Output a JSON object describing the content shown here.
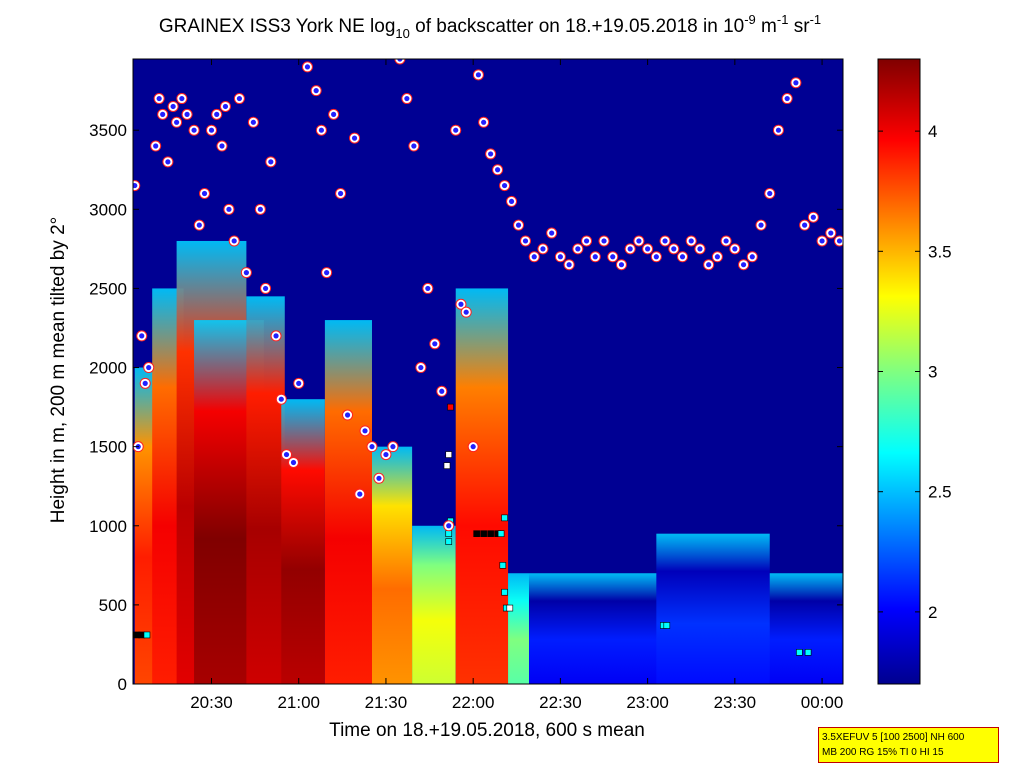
{
  "chart_data": {
    "type": "heatmap",
    "title": {
      "main": "GRAINEX ISS3 York NE log",
      "sub": "10",
      "after": " of backscatter on 18.+19.05.2018 in 10",
      "exp1": "-9",
      "mid": " m",
      "exp2": "-1",
      "tail": " sr",
      "exp3": "-1"
    },
    "xlabel": "Time on 18.+19.05.2018, 600 s mean",
    "ylabel": "Height in m, 200 m mean tilted by 2°",
    "x_unit": "hours since 18.05.2018 00:00",
    "xlim": [
      20.05,
      24.12
    ],
    "ylim": [
      0,
      3950
    ],
    "x_ticks": [
      {
        "value": 20.5,
        "label": "20:30"
      },
      {
        "value": 21.0,
        "label": "21:00"
      },
      {
        "value": 21.5,
        "label": "21:30"
      },
      {
        "value": 22.0,
        "label": "22:00"
      },
      {
        "value": 22.5,
        "label": "22:30"
      },
      {
        "value": 23.0,
        "label": "23:00"
      },
      {
        "value": 23.5,
        "label": "23:30"
      },
      {
        "value": 24.0,
        "label": "00:00"
      }
    ],
    "y_ticks": [
      {
        "value": 0,
        "label": "0"
      },
      {
        "value": 500,
        "label": "500"
      },
      {
        "value": 1000,
        "label": "1000"
      },
      {
        "value": 1500,
        "label": "1500"
      },
      {
        "value": 2000,
        "label": "2000"
      },
      {
        "value": 2500,
        "label": "2500"
      },
      {
        "value": 3000,
        "label": "3000"
      },
      {
        "value": 3500,
        "label": "3500"
      }
    ],
    "colorbar": {
      "range": [
        1.7,
        4.3
      ],
      "ticks": [
        {
          "value": 2,
          "label": "2"
        },
        {
          "value": 2.5,
          "label": "2.5"
        },
        {
          "value": 3,
          "label": "3"
        },
        {
          "value": 3.5,
          "label": "3.5"
        },
        {
          "value": 4,
          "label": "4"
        }
      ]
    },
    "background_level": 1.75,
    "plumes": [
      {
        "x0": 20.06,
        "x1": 20.18,
        "top": 2000,
        "level": 3.9
      },
      {
        "x0": 20.16,
        "x1": 20.34,
        "top": 2500,
        "level": 4.0
      },
      {
        "x0": 20.3,
        "x1": 20.7,
        "top": 2800,
        "level": 4.15
      },
      {
        "x0": 20.4,
        "x1": 20.8,
        "top": 2300,
        "level": 4.3
      },
      {
        "x0": 20.7,
        "x1": 20.92,
        "top": 2450,
        "level": 4.2
      },
      {
        "x0": 20.9,
        "x1": 21.15,
        "top": 1800,
        "level": 4.25
      },
      {
        "x0": 21.15,
        "x1": 21.42,
        "top": 2300,
        "level": 4.0
      },
      {
        "x0": 21.42,
        "x1": 21.65,
        "top": 1500,
        "level": 3.7
      },
      {
        "x0": 21.65,
        "x1": 21.9,
        "top": 1000,
        "level": 3.3
      },
      {
        "x0": 21.9,
        "x1": 22.2,
        "top": 2500,
        "level": 3.95
      },
      {
        "x0": 22.2,
        "x1": 22.32,
        "top": 700,
        "level": 3.0
      },
      {
        "x0": 22.32,
        "x1": 24.12,
        "top": 700,
        "level": 2.1
      },
      {
        "x0": 23.05,
        "x1": 23.7,
        "top": 950,
        "level": 2.15
      }
    ],
    "series": [
      {
        "name": "cloud-top points",
        "x": [
          20.06,
          20.08,
          20.1,
          20.12,
          20.14,
          20.18,
          20.2,
          20.22,
          20.25,
          20.28,
          20.3,
          20.33,
          20.36,
          20.4,
          20.43,
          20.46,
          20.5,
          20.53,
          20.56,
          20.58,
          20.6,
          20.63,
          20.66,
          20.7,
          20.74,
          20.78,
          20.81,
          20.84,
          20.87,
          20.9,
          20.93,
          20.97,
          21.0,
          21.05,
          21.1,
          21.13,
          21.16,
          21.2,
          21.24,
          21.28,
          21.32,
          21.35,
          21.38,
          21.42,
          21.46,
          21.5,
          21.54,
          21.58,
          21.62,
          21.66,
          21.7,
          21.74,
          21.78,
          21.82,
          21.86,
          21.9,
          21.93,
          21.96,
          22.0,
          22.03,
          22.06,
          22.1,
          22.14,
          22.18,
          22.22,
          22.26,
          22.3,
          22.35,
          22.4,
          22.45,
          22.5,
          22.55,
          22.6,
          22.65,
          22.7,
          22.75,
          22.8,
          22.85,
          22.9,
          22.95,
          23.0,
          23.05,
          23.1,
          23.15,
          23.2,
          23.25,
          23.3,
          23.35,
          23.4,
          23.45,
          23.5,
          23.55,
          23.6,
          23.65,
          23.7,
          23.75,
          23.8,
          23.85,
          23.9,
          23.95,
          24.0,
          24.05,
          24.1
        ],
        "y": [
          3150,
          1500,
          2200,
          1900,
          2000,
          3400,
          3700,
          3600,
          3300,
          3650,
          3550,
          3700,
          3600,
          3500,
          2900,
          3100,
          3500,
          3600,
          3400,
          3650,
          3000,
          2800,
          3700,
          2600,
          3550,
          3000,
          2500,
          3300,
          2200,
          1800,
          1450,
          1400,
          1900,
          3900,
          3750,
          3500,
          2600,
          3600,
          3100,
          1700,
          3450,
          1200,
          1600,
          1500,
          1300,
          1450,
          1500,
          3950,
          3700,
          3400,
          2000,
          2500,
          2150,
          1850,
          1000,
          3500,
          2400,
          2350,
          1500,
          3850,
          3550,
          3350,
          3250,
          3150,
          3050,
          2900,
          2800,
          2700,
          2750,
          2850,
          2700,
          2650,
          2750,
          2800,
          2700,
          2800,
          2700,
          2650,
          2750,
          2800,
          2750,
          2700,
          2800,
          2750,
          2700,
          2800,
          2750,
          2650,
          2700,
          2800,
          2750,
          2650,
          2700,
          2900,
          3100,
          3500,
          3700,
          3800,
          2900,
          2950,
          2800,
          2850,
          2800
        ]
      }
    ],
    "cloud_base_markers": [
      {
        "x": 20.07,
        "y": 310,
        "color": "#000000"
      },
      {
        "x": 20.1,
        "y": 310,
        "color": "#000000"
      },
      {
        "x": 20.13,
        "y": 310,
        "color": "#00ffff"
      },
      {
        "x": 21.85,
        "y": 1380,
        "color": "#ffffff"
      },
      {
        "x": 21.86,
        "y": 1450,
        "color": "#ffffff"
      },
      {
        "x": 21.87,
        "y": 1750,
        "color": "#ff0000"
      },
      {
        "x": 21.86,
        "y": 950,
        "color": "#00ffff"
      },
      {
        "x": 21.87,
        "y": 1030,
        "color": "#00ffff"
      },
      {
        "x": 21.86,
        "y": 900,
        "color": "#00ffff"
      },
      {
        "x": 22.02,
        "y": 950,
        "color": "#000000"
      },
      {
        "x": 22.06,
        "y": 950,
        "color": "#000000"
      },
      {
        "x": 22.1,
        "y": 950,
        "color": "#000000"
      },
      {
        "x": 22.14,
        "y": 950,
        "color": "#000000"
      },
      {
        "x": 22.16,
        "y": 950,
        "color": "#00ffff"
      },
      {
        "x": 22.18,
        "y": 1050,
        "color": "#00ffff"
      },
      {
        "x": 22.17,
        "y": 750,
        "color": "#00ffff"
      },
      {
        "x": 22.18,
        "y": 580,
        "color": "#00ffff"
      },
      {
        "x": 22.19,
        "y": 480,
        "color": "#00ffff"
      },
      {
        "x": 22.21,
        "y": 480,
        "color": "#ffffff"
      },
      {
        "x": 23.09,
        "y": 370,
        "color": "#00ffff"
      },
      {
        "x": 23.11,
        "y": 370,
        "color": "#00ffff"
      },
      {
        "x": 23.87,
        "y": 200,
        "color": "#00ffff"
      },
      {
        "x": 23.92,
        "y": 200,
        "color": "#00ffff"
      }
    ]
  },
  "info_box": {
    "line1": "3.5XEFUV 5 [100 2500] NH 600",
    "line2": "MB 200 RG 15% TI 0 HI 15"
  }
}
